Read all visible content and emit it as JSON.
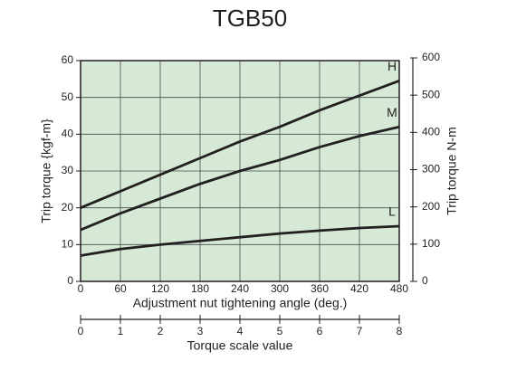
{
  "chart_data": {
    "type": "line",
    "title": "TGB50",
    "x": [
      0,
      60,
      120,
      180,
      240,
      300,
      360,
      420,
      480
    ],
    "series": [
      {
        "name": "H",
        "color": "#231f20",
        "values": [
          20,
          24.5,
          29,
          33.5,
          38,
          42,
          46.5,
          50.5,
          54.5
        ]
      },
      {
        "name": "M",
        "color": "#231f20",
        "values": [
          14,
          18.5,
          22.5,
          26.5,
          30,
          33,
          36.5,
          39.5,
          42
        ]
      },
      {
        "name": "L",
        "color": "#231f20",
        "values": [
          7,
          8.8,
          10,
          11,
          12,
          13,
          13.8,
          14.5,
          15
        ]
      }
    ],
    "xlim": [
      0,
      480
    ],
    "xticks": [
      0,
      60,
      120,
      180,
      240,
      300,
      360,
      420,
      480
    ],
    "xlabel": "Adjustment nut tightening angle (deg.)",
    "ylim": [
      0,
      60
    ],
    "yticks": [
      0,
      10,
      20,
      30,
      40,
      50,
      60
    ],
    "ylabel": "Trip torque {kgf-m}",
    "y2lim": [
      0,
      600
    ],
    "y2ticks": [
      0,
      100,
      200,
      300,
      400,
      500,
      600
    ],
    "y2label": "Trip torque N-m",
    "x2lim": [
      0,
      8
    ],
    "x2ticks": [
      0,
      1,
      2,
      3,
      4,
      5,
      6,
      7,
      8
    ],
    "x2label": "Torque scale value",
    "grid": true,
    "background": "#d5e9d6"
  }
}
